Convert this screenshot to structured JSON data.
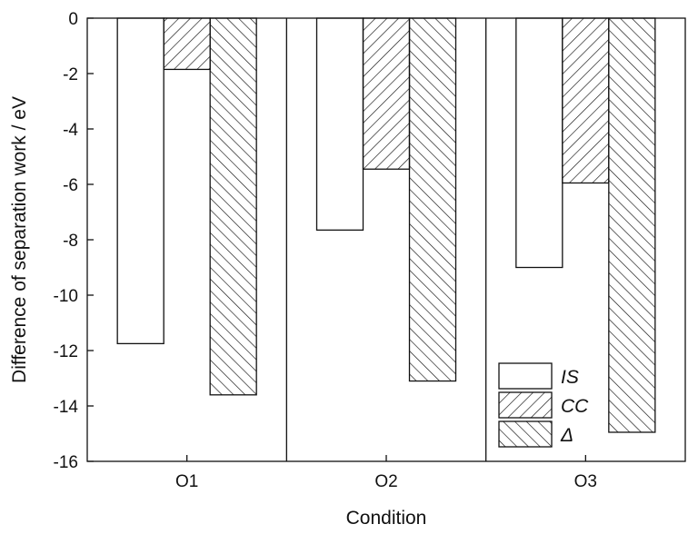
{
  "chart_data": {
    "type": "bar",
    "xlabel": "Condition",
    "ylabel": "Difference of separation work / eV",
    "categories": [
      "O1",
      "O2",
      "O3"
    ],
    "series": [
      {
        "name": "IS",
        "values": [
          -11.75,
          -7.65,
          -9.0
        ],
        "fill": "none"
      },
      {
        "name": "CC",
        "values": [
          -1.85,
          -5.45,
          -5.95
        ],
        "fill": "hatch-forward"
      },
      {
        "name": "Δ",
        "values": [
          -13.6,
          -13.1,
          -14.95
        ],
        "fill": "hatch-back"
      }
    ],
    "ylim": [
      -16,
      0
    ],
    "yticks": [
      "0",
      "-2",
      "-4",
      "-6",
      "-8",
      "-10",
      "-12",
      "-14",
      "-16"
    ],
    "grid": false,
    "category_separators": true,
    "legend_position": "bottom-right",
    "colors": {
      "line": "#111111",
      "background": "#ffffff"
    }
  }
}
